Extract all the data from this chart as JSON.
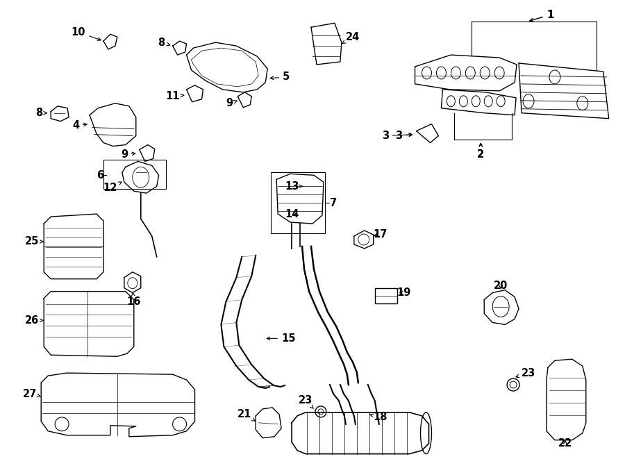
{
  "bg_color": "#ffffff",
  "line_color": "#000000",
  "fig_width": 9.0,
  "fig_height": 6.61,
  "dpi": 100,
  "label_fontsize": 10.5
}
